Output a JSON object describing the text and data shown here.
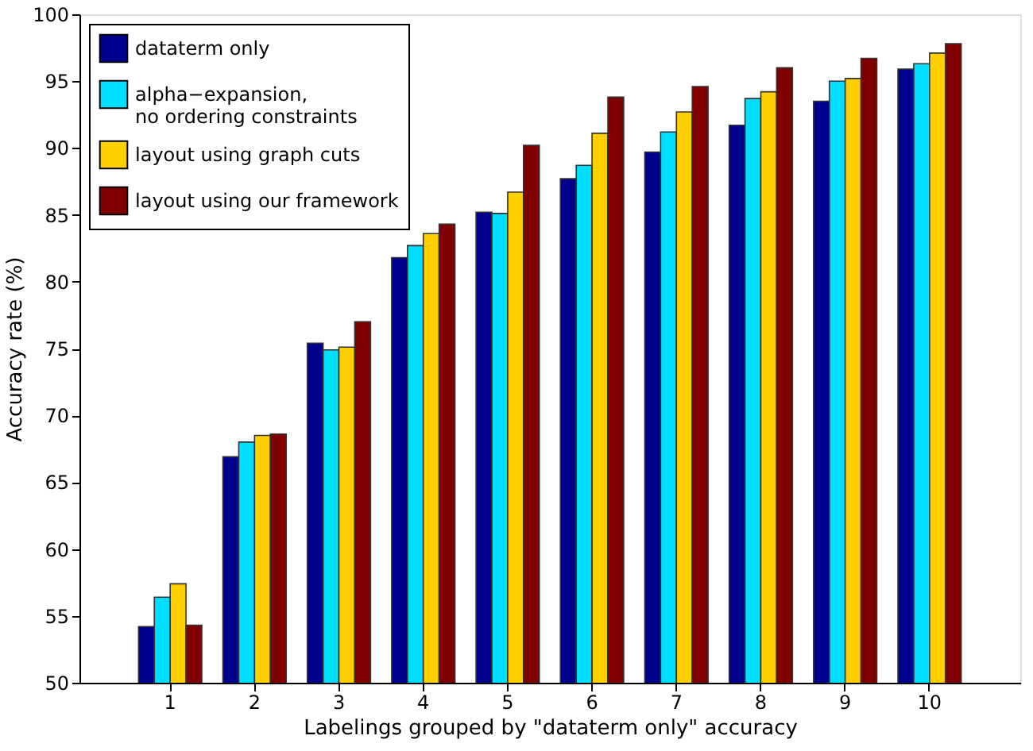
{
  "chart_data": {
    "type": "bar",
    "xlabel": "Labelings grouped by \"dataterm only\" accuracy",
    "ylabel": "Accuracy rate (%)",
    "categories": [
      "1",
      "2",
      "3",
      "4",
      "5",
      "6",
      "7",
      "8",
      "9",
      "10"
    ],
    "series": [
      {
        "name": "dataterm only",
        "color": "#00008f",
        "values": [
          54.2,
          66.9,
          75.4,
          81.8,
          85.2,
          87.7,
          89.7,
          91.7,
          93.5,
          95.9
        ]
      },
      {
        "name": "alpha−expansion,\nno ordering constraints",
        "color": "#00dfff",
        "values": [
          56.4,
          68.0,
          74.9,
          82.7,
          85.1,
          88.7,
          91.2,
          93.7,
          95.0,
          96.3
        ]
      },
      {
        "name": "layout using graph cuts",
        "color": "#ffcf00",
        "values": [
          57.4,
          68.5,
          75.1,
          83.6,
          86.7,
          91.1,
          92.7,
          94.2,
          95.2,
          97.1
        ]
      },
      {
        "name": "layout using our framework",
        "color": "#800000",
        "values": [
          54.3,
          68.6,
          77.0,
          84.3,
          90.2,
          93.8,
          94.6,
          96.0,
          96.7,
          97.8
        ]
      }
    ],
    "ylim": [
      50,
      100
    ],
    "yticks": [
      50,
      55,
      60,
      65,
      70,
      75,
      80,
      85,
      90,
      95,
      100
    ],
    "grid": false,
    "legend": "top left"
  }
}
